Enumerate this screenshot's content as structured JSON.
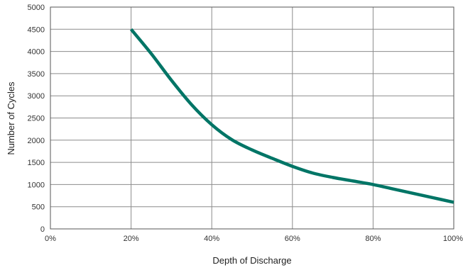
{
  "chart_data": {
    "type": "line",
    "title": "",
    "xlabel": "Depth of Discharge",
    "ylabel": "Number of Cycles",
    "xlim": [
      0,
      100
    ],
    "ylim": [
      0,
      5000
    ],
    "x_ticks": [
      0,
      20,
      40,
      60,
      80,
      100
    ],
    "x_tick_labels": [
      "0%",
      "20%",
      "40%",
      "60%",
      "80%",
      "100%"
    ],
    "y_ticks": [
      0,
      500,
      1000,
      1500,
      2000,
      2500,
      3000,
      3500,
      4000,
      4500,
      5000
    ],
    "y_tick_labels": [
      "0",
      "500",
      "1000",
      "1500",
      "2000",
      "2500",
      "3000",
      "3500",
      "4000",
      "4500",
      "5000"
    ],
    "grid": true,
    "legend": "none",
    "series": [
      {
        "color": "#007566",
        "x": [
          20,
          25,
          30,
          35,
          40,
          45,
          50,
          55,
          60,
          65,
          70,
          75,
          80,
          85,
          90,
          95,
          100
        ],
        "y": [
          4500,
          3950,
          3350,
          2800,
          2350,
          2010,
          1780,
          1590,
          1410,
          1260,
          1160,
          1080,
          1000,
          900,
          800,
          700,
          600
        ]
      }
    ]
  }
}
